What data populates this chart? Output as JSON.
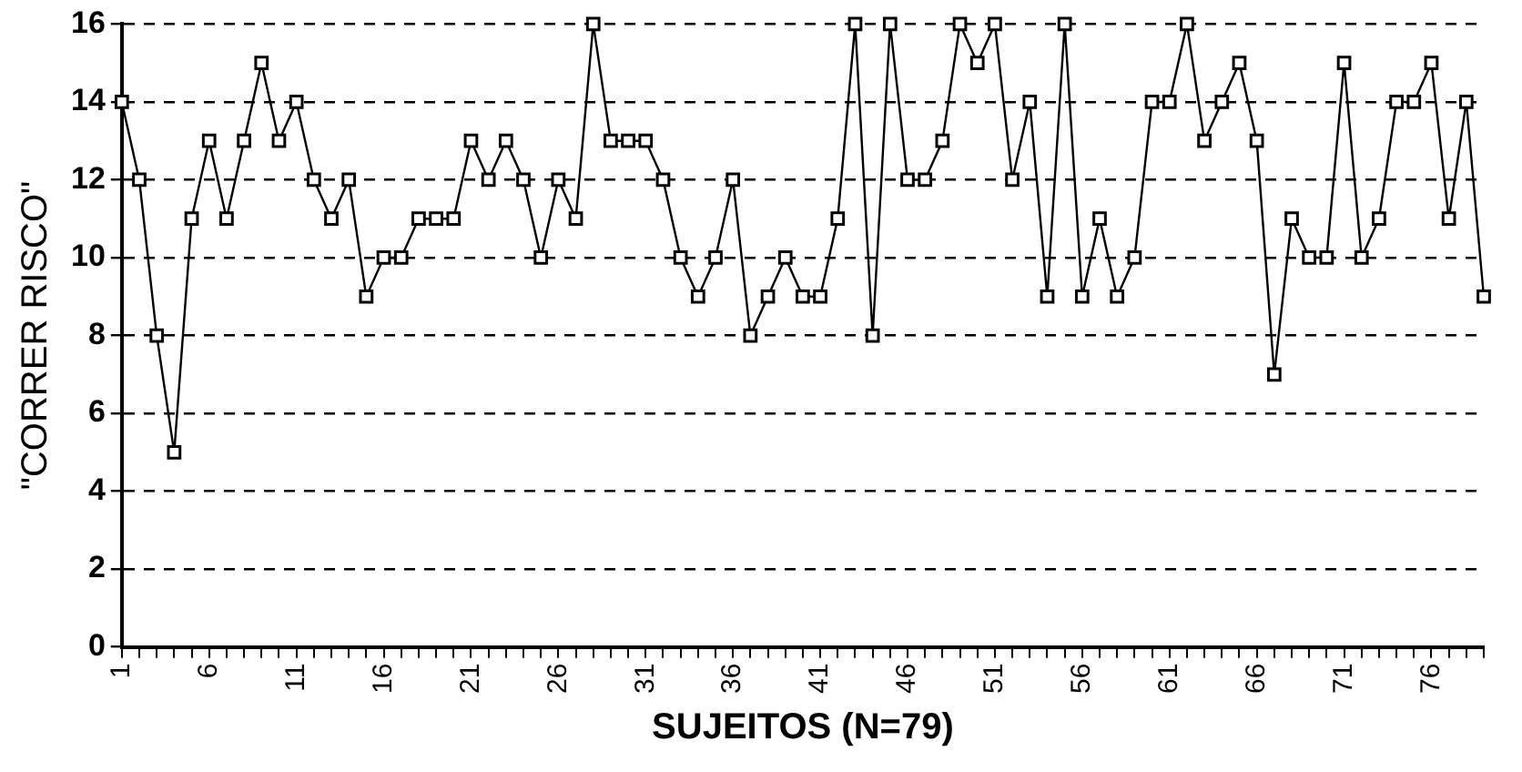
{
  "chart_data": {
    "type": "line",
    "xlabel": "SUJEITOS (N=79)",
    "ylabel": "\"CORRER RISCO\"",
    "categories": [
      "1",
      null,
      null,
      null,
      null,
      "6",
      null,
      null,
      null,
      null,
      "11",
      null,
      null,
      null,
      null,
      "16",
      null,
      null,
      null,
      null,
      "21",
      null,
      null,
      null,
      null,
      "26",
      null,
      null,
      null,
      null,
      "31",
      null,
      null,
      null,
      null,
      "36",
      null,
      null,
      null,
      null,
      "41",
      null,
      null,
      null,
      null,
      "46",
      null,
      null,
      null,
      null,
      "51",
      null,
      null,
      null,
      null,
      "56",
      null,
      null,
      null,
      null,
      "61",
      null,
      null,
      null,
      null,
      "66",
      null,
      null,
      null,
      null,
      "71",
      null,
      null,
      null,
      null,
      "76",
      null,
      null,
      null
    ],
    "series": [
      {
        "color": "#000000",
        "values": [
          14,
          12,
          8,
          5,
          11,
          13,
          11,
          13,
          15,
          13,
          14,
          12,
          11,
          12,
          9,
          10,
          10,
          11,
          11,
          11,
          13,
          12,
          13,
          12,
          10,
          12,
          11,
          16,
          13,
          13,
          13,
          12,
          10,
          9,
          10,
          12,
          8,
          9,
          10,
          9,
          9,
          11,
          16,
          8,
          16,
          12,
          12,
          13,
          16,
          15,
          16,
          12,
          14,
          9,
          16,
          9,
          11,
          9,
          10,
          14,
          14,
          16,
          13,
          14,
          15,
          13,
          7,
          11,
          10,
          10,
          15,
          10,
          11,
          14,
          14,
          15,
          11,
          14,
          9
        ]
      }
    ],
    "ylim": [
      0,
      16
    ],
    "yticks": [
      0,
      2,
      4,
      6,
      8,
      10,
      12,
      14,
      16
    ],
    "grid": "y",
    "legend": false,
    "marker": "square",
    "line_style": "solid"
  }
}
